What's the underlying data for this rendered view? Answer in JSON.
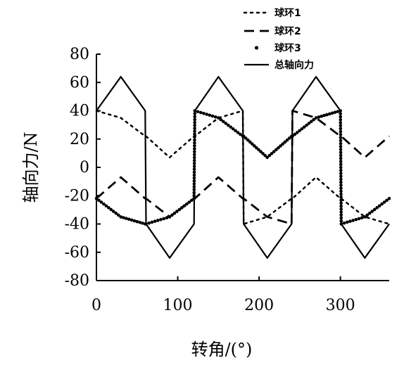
{
  "chart_data": {
    "type": "line",
    "xlabel": "转角/(°)",
    "ylabel": "轴向力/N",
    "xlim": [
      0,
      360
    ],
    "ylim": [
      -80,
      80
    ],
    "xticks": [
      0,
      100,
      200,
      300
    ],
    "yticks": [
      80,
      60,
      40,
      20,
      0,
      -20,
      -40,
      -60,
      -80
    ],
    "grid": false,
    "legend_position": "top-right",
    "x": [
      0,
      30,
      60,
      61,
      90,
      120,
      121,
      150,
      180,
      181,
      210,
      240,
      241,
      270,
      300,
      301,
      330,
      360
    ],
    "series": [
      {
        "name": "球环1",
        "style": "dotted",
        "values": [
          40,
          35,
          22,
          22,
          7,
          22,
          22,
          35,
          40,
          -40,
          -35,
          -22,
          -22,
          -7,
          -22,
          -22,
          -35,
          -40
        ]
      },
      {
        "name": "球环2",
        "style": "dashed",
        "values": [
          -22,
          -7,
          -22,
          -22,
          -35,
          -22,
          -22,
          -7,
          -22,
          -22,
          -35,
          -40,
          40,
          35,
          22,
          22,
          7,
          22
        ]
      },
      {
        "name": "球环3",
        "style": "dots",
        "values": [
          -22,
          -35,
          -40,
          -40,
          -35,
          -22,
          40,
          35,
          22,
          22,
          7,
          22,
          22,
          35,
          40,
          -40,
          -35,
          -22
        ]
      },
      {
        "name": "总轴向力",
        "style": "solid",
        "values": [
          40,
          64,
          40,
          -40,
          -64,
          -40,
          40,
          64,
          40,
          -40,
          -64,
          -40,
          40,
          64,
          40,
          -40,
          -64,
          -40
        ]
      }
    ]
  }
}
